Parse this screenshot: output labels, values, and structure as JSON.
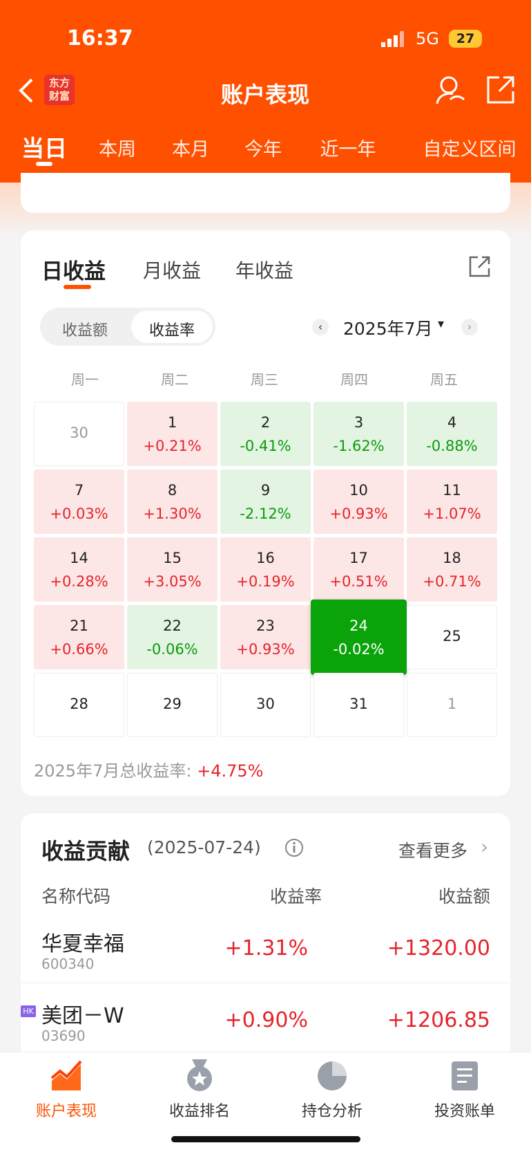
{
  "status_bar": {
    "time": "16:37",
    "network": "5G",
    "battery": "27"
  },
  "header": {
    "logo": [
      "东方",
      "财富"
    ],
    "title": "账户表现"
  },
  "period_tabs": [
    "当日",
    "本周",
    "本月",
    "今年",
    "近一年",
    "自定义区间"
  ],
  "calendar_card": {
    "tabs": [
      "日收益",
      "月收益",
      "年收益"
    ],
    "toggle": [
      "收益额",
      "收益率"
    ],
    "month": "2025年7月",
    "weekdays": [
      "周一",
      "周二",
      "周三",
      "周四",
      "周五"
    ],
    "rows": [
      [
        {
          "day": "30",
          "tone": "other"
        },
        {
          "day": "1",
          "rate": "+0.21%",
          "tone": "up"
        },
        {
          "day": "2",
          "rate": "-0.41%",
          "tone": "down"
        },
        {
          "day": "3",
          "rate": "-1.62%",
          "tone": "down"
        },
        {
          "day": "4",
          "rate": "-0.88%",
          "tone": "down"
        }
      ],
      [
        {
          "day": "7",
          "rate": "+0.03%",
          "tone": "up"
        },
        {
          "day": "8",
          "rate": "+1.30%",
          "tone": "up"
        },
        {
          "day": "9",
          "rate": "-2.12%",
          "tone": "down"
        },
        {
          "day": "10",
          "rate": "+0.93%",
          "tone": "up"
        },
        {
          "day": "11",
          "rate": "+1.07%",
          "tone": "up"
        }
      ],
      [
        {
          "day": "14",
          "rate": "+0.28%",
          "tone": "up"
        },
        {
          "day": "15",
          "rate": "+3.05%",
          "tone": "up"
        },
        {
          "day": "16",
          "rate": "+0.19%",
          "tone": "up"
        },
        {
          "day": "17",
          "rate": "+0.51%",
          "tone": "up"
        },
        {
          "day": "18",
          "rate": "+0.71%",
          "tone": "up"
        }
      ],
      [
        {
          "day": "21",
          "rate": "+0.66%",
          "tone": "up"
        },
        {
          "day": "22",
          "rate": "-0.06%",
          "tone": "down"
        },
        {
          "day": "23",
          "rate": "+0.93%",
          "tone": "up"
        },
        {
          "day": "24",
          "rate": "-0.02%",
          "tone": "selected"
        },
        {
          "day": "25",
          "tone": "none"
        }
      ],
      [
        {
          "day": "28",
          "tone": "none"
        },
        {
          "day": "29",
          "tone": "none"
        },
        {
          "day": "30",
          "tone": "none"
        },
        {
          "day": "31",
          "tone": "none"
        },
        {
          "day": "1",
          "tone": "other"
        }
      ]
    ],
    "summary_label": "2025年7月总收益率:",
    "summary_value": "+4.75%"
  },
  "contribution": {
    "title": "收益贡献",
    "date": "(2025-07-24)",
    "more": "查看更多",
    "columns": [
      "名称代码",
      "收益率",
      "收益额"
    ],
    "rows": [
      {
        "name": "华夏幸福",
        "code": "600340",
        "rate": "+1.31%",
        "amount": "+1320.00"
      },
      {
        "badge": "HK",
        "name": "美团－W",
        "code": "03690",
        "rate": "+0.90%",
        "amount": "+1206.85"
      }
    ]
  },
  "bottom_nav": [
    "账户表现",
    "收益排名",
    "持仓分析",
    "投资账单"
  ]
}
